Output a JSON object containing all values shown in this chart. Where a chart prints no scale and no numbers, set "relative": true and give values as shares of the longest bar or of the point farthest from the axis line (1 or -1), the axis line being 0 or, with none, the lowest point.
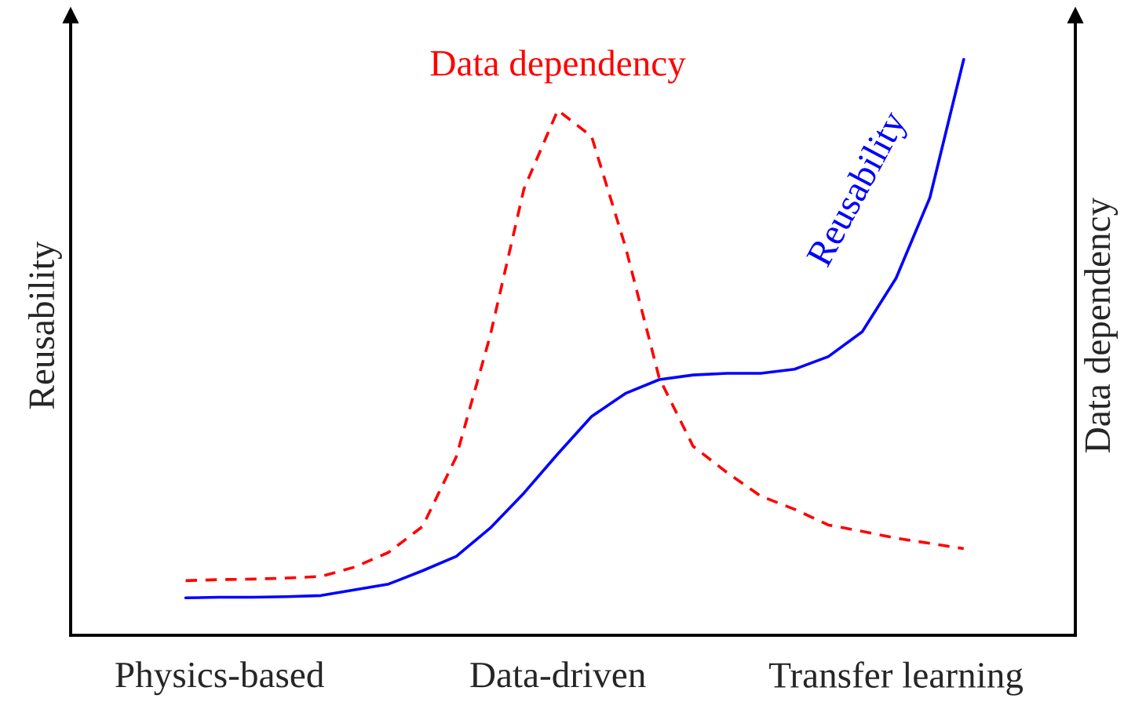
{
  "chart_data": {
    "type": "line",
    "relative": true,
    "ylabel": "Reusability",
    "y2label": "Data dependency",
    "categories": [
      null,
      "Physics-based",
      null,
      null,
      null,
      null,
      null,
      null,
      null,
      null,
      null,
      "Data-driven",
      null,
      null,
      null,
      null,
      null,
      null,
      null,
      null,
      null,
      "Transfer learning",
      null,
      null
    ],
    "tick_labels": "x",
    "grid": false,
    "legend": false,
    "series": [
      {
        "name": "Reusability",
        "color": "#0000ff",
        "line_style": "solid",
        "values": [
          0.065,
          0.066,
          0.066,
          0.067,
          0.069,
          0.079,
          0.089,
          0.112,
          0.137,
          0.186,
          0.247,
          0.315,
          0.38,
          0.42,
          0.444,
          0.452,
          0.455,
          0.455,
          0.462,
          0.484,
          0.527,
          0.62,
          0.76,
          1.0
        ]
      },
      {
        "name": "Data dependency",
        "color": "#ff0000",
        "line_style": "dashed",
        "axis": "y2",
        "values": [
          0.104,
          0.106,
          0.107,
          0.109,
          0.112,
          0.13,
          0.158,
          0.207,
          0.34,
          0.57,
          0.85,
          1.0,
          0.95,
          0.74,
          0.49,
          0.36,
          0.31,
          0.265,
          0.24,
          0.21,
          0.198,
          0.185,
          0.175,
          0.165
        ]
      }
    ]
  }
}
